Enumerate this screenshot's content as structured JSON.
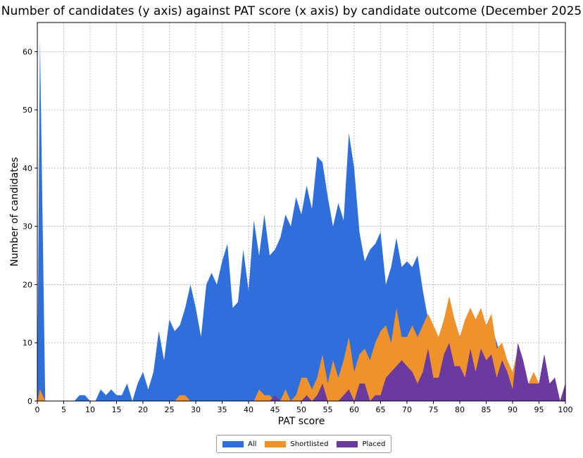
{
  "chart_data": {
    "type": "area",
    "title": "Number of candidates (y axis) against PAT score (x axis) by candidate outcome (December 2025",
    "xlabel": "PAT score",
    "ylabel": "Number of candidates",
    "xlim": [
      0,
      100
    ],
    "ylim": [
      0,
      65
    ],
    "xticks": [
      0,
      5,
      10,
      15,
      20,
      25,
      30,
      35,
      40,
      45,
      50,
      55,
      60,
      65,
      70,
      75,
      80,
      85,
      90,
      95,
      100
    ],
    "yticks": [
      0,
      10,
      20,
      30,
      40,
      50,
      60
    ],
    "grid": true,
    "legend_position": "bottom-center",
    "series": [
      {
        "name": "All",
        "color": "#2f6fdb",
        "points": [
          [
            0,
            2
          ],
          [
            0.5,
            62
          ],
          [
            1.5,
            0
          ],
          [
            7,
            0
          ],
          [
            8,
            1
          ],
          [
            9,
            1
          ],
          [
            10,
            0
          ],
          [
            11,
            0
          ],
          [
            12,
            2
          ],
          [
            13,
            1
          ],
          [
            14,
            2
          ],
          [
            15,
            1
          ],
          [
            16,
            1
          ],
          [
            17,
            3
          ],
          [
            18,
            0
          ],
          [
            19,
            3
          ],
          [
            20,
            5
          ],
          [
            21,
            2
          ],
          [
            22,
            5
          ],
          [
            23,
            12
          ],
          [
            24,
            7
          ],
          [
            25,
            14
          ],
          [
            26,
            12
          ],
          [
            27,
            13
          ],
          [
            28,
            16
          ],
          [
            29,
            20
          ],
          [
            30,
            16
          ],
          [
            31,
            11
          ],
          [
            32,
            20
          ],
          [
            33,
            22
          ],
          [
            34,
            20
          ],
          [
            35,
            24
          ],
          [
            36,
            27
          ],
          [
            37,
            16
          ],
          [
            38,
            17
          ],
          [
            39,
            26
          ],
          [
            40,
            19
          ],
          [
            41,
            31
          ],
          [
            42,
            25
          ],
          [
            43,
            32
          ],
          [
            44,
            25
          ],
          [
            45,
            26
          ],
          [
            46,
            28
          ],
          [
            47,
            32
          ],
          [
            48,
            30
          ],
          [
            49,
            35
          ],
          [
            50,
            32
          ],
          [
            51,
            37
          ],
          [
            52,
            33
          ],
          [
            53,
            42
          ],
          [
            54,
            41
          ],
          [
            55,
            35
          ],
          [
            56,
            30
          ],
          [
            57,
            34
          ],
          [
            58,
            31
          ],
          [
            59,
            46
          ],
          [
            60,
            40
          ],
          [
            61,
            29
          ],
          [
            62,
            24
          ],
          [
            63,
            26
          ],
          [
            64,
            27
          ],
          [
            65,
            29
          ],
          [
            66,
            20
          ],
          [
            67,
            23
          ],
          [
            68,
            28
          ],
          [
            69,
            23
          ],
          [
            70,
            24
          ],
          [
            71,
            23
          ],
          [
            72,
            25
          ],
          [
            73,
            19
          ],
          [
            74,
            14
          ],
          [
            75,
            12
          ],
          [
            76,
            11
          ],
          [
            77,
            14
          ],
          [
            78,
            16
          ],
          [
            79,
            14
          ],
          [
            80,
            11
          ],
          [
            81,
            13
          ],
          [
            82,
            16
          ],
          [
            83,
            14
          ],
          [
            84,
            15
          ],
          [
            85,
            13
          ],
          [
            86,
            13
          ],
          [
            87,
            10
          ],
          [
            88,
            7
          ],
          [
            89,
            5
          ],
          [
            90,
            4
          ],
          [
            91,
            9
          ],
          [
            92,
            4
          ],
          [
            93,
            3
          ],
          [
            94,
            4
          ],
          [
            95,
            3
          ],
          [
            96,
            8
          ],
          [
            97,
            3
          ],
          [
            98,
            4
          ],
          [
            99,
            0
          ],
          [
            100,
            3
          ]
        ]
      },
      {
        "name": "Shortlisted",
        "color": "#f0922b",
        "points": [
          [
            0,
            0
          ],
          [
            0.5,
            2
          ],
          [
            1.5,
            0
          ],
          [
            26,
            0
          ],
          [
            27,
            1
          ],
          [
            28,
            1
          ],
          [
            29,
            0
          ],
          [
            41,
            0
          ],
          [
            42,
            2
          ],
          [
            43,
            1
          ],
          [
            44,
            1
          ],
          [
            45,
            0
          ],
          [
            46,
            0
          ],
          [
            47,
            2
          ],
          [
            48,
            0
          ],
          [
            49,
            1
          ],
          [
            50,
            4
          ],
          [
            51,
            4
          ],
          [
            52,
            2
          ],
          [
            53,
            4
          ],
          [
            54,
            8
          ],
          [
            55,
            3
          ],
          [
            56,
            7
          ],
          [
            57,
            4
          ],
          [
            58,
            7
          ],
          [
            59,
            11
          ],
          [
            60,
            5
          ],
          [
            61,
            8
          ],
          [
            62,
            9
          ],
          [
            63,
            7
          ],
          [
            64,
            10
          ],
          [
            65,
            12
          ],
          [
            66,
            13
          ],
          [
            67,
            10
          ],
          [
            68,
            16
          ],
          [
            69,
            11
          ],
          [
            70,
            11
          ],
          [
            71,
            13
          ],
          [
            72,
            11
          ],
          [
            73,
            13
          ],
          [
            74,
            15
          ],
          [
            75,
            13
          ],
          [
            76,
            11
          ],
          [
            77,
            14
          ],
          [
            78,
            18
          ],
          [
            79,
            14
          ],
          [
            80,
            11
          ],
          [
            81,
            14
          ],
          [
            82,
            16
          ],
          [
            83,
            14
          ],
          [
            84,
            16
          ],
          [
            85,
            13
          ],
          [
            86,
            15
          ],
          [
            87,
            9
          ],
          [
            88,
            10
          ],
          [
            89,
            7
          ],
          [
            90,
            5
          ],
          [
            91,
            9
          ],
          [
            92,
            4
          ],
          [
            93,
            3
          ],
          [
            94,
            5
          ],
          [
            95,
            3
          ],
          [
            96,
            7
          ],
          [
            97,
            2
          ],
          [
            98,
            4
          ],
          [
            99,
            0
          ],
          [
            100,
            3
          ]
        ]
      },
      {
        "name": "Placed",
        "color": "#6a3a9e",
        "points": [
          [
            0,
            0
          ],
          [
            44,
            0
          ],
          [
            45,
            1
          ],
          [
            46,
            0
          ],
          [
            50,
            0
          ],
          [
            51,
            1
          ],
          [
            52,
            0
          ],
          [
            53,
            1
          ],
          [
            54,
            3
          ],
          [
            55,
            0
          ],
          [
            57,
            0
          ],
          [
            58,
            1
          ],
          [
            59,
            2
          ],
          [
            60,
            0
          ],
          [
            61,
            3
          ],
          [
            62,
            3
          ],
          [
            63,
            0
          ],
          [
            64,
            1
          ],
          [
            65,
            1
          ],
          [
            66,
            4
          ],
          [
            67,
            5
          ],
          [
            68,
            6
          ],
          [
            69,
            7
          ],
          [
            70,
            6
          ],
          [
            71,
            5
          ],
          [
            72,
            3
          ],
          [
            73,
            5
          ],
          [
            74,
            9
          ],
          [
            75,
            4
          ],
          [
            76,
            4
          ],
          [
            77,
            8
          ],
          [
            78,
            10
          ],
          [
            79,
            6
          ],
          [
            80,
            6
          ],
          [
            81,
            4
          ],
          [
            82,
            9
          ],
          [
            83,
            5
          ],
          [
            84,
            9
          ],
          [
            85,
            7
          ],
          [
            86,
            8
          ],
          [
            87,
            4
          ],
          [
            88,
            7
          ],
          [
            89,
            5
          ],
          [
            90,
            2
          ],
          [
            91,
            10
          ],
          [
            92,
            7
          ],
          [
            93,
            3
          ],
          [
            94,
            3
          ],
          [
            95,
            3
          ],
          [
            96,
            8
          ],
          [
            97,
            3
          ],
          [
            98,
            4
          ],
          [
            99,
            0
          ],
          [
            100,
            3
          ]
        ]
      }
    ]
  }
}
